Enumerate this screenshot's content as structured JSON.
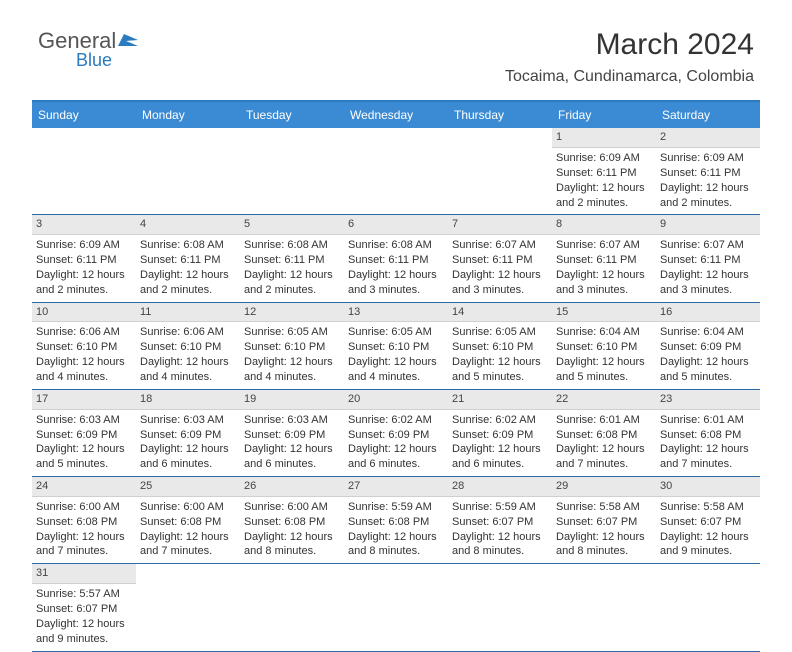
{
  "logo": {
    "part1": "General",
    "part2": "Blue"
  },
  "title": "March 2024",
  "location": "Tocaima, Cundinamarca, Colombia",
  "colors": {
    "header_bg": "#3b8bd4",
    "border": "#2b6aa8",
    "daynum_bg": "#e9e9e9",
    "text": "#333333",
    "logo_blue": "#2b7bbf"
  },
  "day_headers": [
    "Sunday",
    "Monday",
    "Tuesday",
    "Wednesday",
    "Thursday",
    "Friday",
    "Saturday"
  ],
  "weeks": [
    [
      {
        "n": "",
        "sr": "",
        "ss": "",
        "dl": ""
      },
      {
        "n": "",
        "sr": "",
        "ss": "",
        "dl": ""
      },
      {
        "n": "",
        "sr": "",
        "ss": "",
        "dl": ""
      },
      {
        "n": "",
        "sr": "",
        "ss": "",
        "dl": ""
      },
      {
        "n": "",
        "sr": "",
        "ss": "",
        "dl": ""
      },
      {
        "n": "1",
        "sr": "Sunrise: 6:09 AM",
        "ss": "Sunset: 6:11 PM",
        "dl": "Daylight: 12 hours and 2 minutes."
      },
      {
        "n": "2",
        "sr": "Sunrise: 6:09 AM",
        "ss": "Sunset: 6:11 PM",
        "dl": "Daylight: 12 hours and 2 minutes."
      }
    ],
    [
      {
        "n": "3",
        "sr": "Sunrise: 6:09 AM",
        "ss": "Sunset: 6:11 PM",
        "dl": "Daylight: 12 hours and 2 minutes."
      },
      {
        "n": "4",
        "sr": "Sunrise: 6:08 AM",
        "ss": "Sunset: 6:11 PM",
        "dl": "Daylight: 12 hours and 2 minutes."
      },
      {
        "n": "5",
        "sr": "Sunrise: 6:08 AM",
        "ss": "Sunset: 6:11 PM",
        "dl": "Daylight: 12 hours and 2 minutes."
      },
      {
        "n": "6",
        "sr": "Sunrise: 6:08 AM",
        "ss": "Sunset: 6:11 PM",
        "dl": "Daylight: 12 hours and 3 minutes."
      },
      {
        "n": "7",
        "sr": "Sunrise: 6:07 AM",
        "ss": "Sunset: 6:11 PM",
        "dl": "Daylight: 12 hours and 3 minutes."
      },
      {
        "n": "8",
        "sr": "Sunrise: 6:07 AM",
        "ss": "Sunset: 6:11 PM",
        "dl": "Daylight: 12 hours and 3 minutes."
      },
      {
        "n": "9",
        "sr": "Sunrise: 6:07 AM",
        "ss": "Sunset: 6:11 PM",
        "dl": "Daylight: 12 hours and 3 minutes."
      }
    ],
    [
      {
        "n": "10",
        "sr": "Sunrise: 6:06 AM",
        "ss": "Sunset: 6:10 PM",
        "dl": "Daylight: 12 hours and 4 minutes."
      },
      {
        "n": "11",
        "sr": "Sunrise: 6:06 AM",
        "ss": "Sunset: 6:10 PM",
        "dl": "Daylight: 12 hours and 4 minutes."
      },
      {
        "n": "12",
        "sr": "Sunrise: 6:05 AM",
        "ss": "Sunset: 6:10 PM",
        "dl": "Daylight: 12 hours and 4 minutes."
      },
      {
        "n": "13",
        "sr": "Sunrise: 6:05 AM",
        "ss": "Sunset: 6:10 PM",
        "dl": "Daylight: 12 hours and 4 minutes."
      },
      {
        "n": "14",
        "sr": "Sunrise: 6:05 AM",
        "ss": "Sunset: 6:10 PM",
        "dl": "Daylight: 12 hours and 5 minutes."
      },
      {
        "n": "15",
        "sr": "Sunrise: 6:04 AM",
        "ss": "Sunset: 6:10 PM",
        "dl": "Daylight: 12 hours and 5 minutes."
      },
      {
        "n": "16",
        "sr": "Sunrise: 6:04 AM",
        "ss": "Sunset: 6:09 PM",
        "dl": "Daylight: 12 hours and 5 minutes."
      }
    ],
    [
      {
        "n": "17",
        "sr": "Sunrise: 6:03 AM",
        "ss": "Sunset: 6:09 PM",
        "dl": "Daylight: 12 hours and 5 minutes."
      },
      {
        "n": "18",
        "sr": "Sunrise: 6:03 AM",
        "ss": "Sunset: 6:09 PM",
        "dl": "Daylight: 12 hours and 6 minutes."
      },
      {
        "n": "19",
        "sr": "Sunrise: 6:03 AM",
        "ss": "Sunset: 6:09 PM",
        "dl": "Daylight: 12 hours and 6 minutes."
      },
      {
        "n": "20",
        "sr": "Sunrise: 6:02 AM",
        "ss": "Sunset: 6:09 PM",
        "dl": "Daylight: 12 hours and 6 minutes."
      },
      {
        "n": "21",
        "sr": "Sunrise: 6:02 AM",
        "ss": "Sunset: 6:09 PM",
        "dl": "Daylight: 12 hours and 6 minutes."
      },
      {
        "n": "22",
        "sr": "Sunrise: 6:01 AM",
        "ss": "Sunset: 6:08 PM",
        "dl": "Daylight: 12 hours and 7 minutes."
      },
      {
        "n": "23",
        "sr": "Sunrise: 6:01 AM",
        "ss": "Sunset: 6:08 PM",
        "dl": "Daylight: 12 hours and 7 minutes."
      }
    ],
    [
      {
        "n": "24",
        "sr": "Sunrise: 6:00 AM",
        "ss": "Sunset: 6:08 PM",
        "dl": "Daylight: 12 hours and 7 minutes."
      },
      {
        "n": "25",
        "sr": "Sunrise: 6:00 AM",
        "ss": "Sunset: 6:08 PM",
        "dl": "Daylight: 12 hours and 7 minutes."
      },
      {
        "n": "26",
        "sr": "Sunrise: 6:00 AM",
        "ss": "Sunset: 6:08 PM",
        "dl": "Daylight: 12 hours and 8 minutes."
      },
      {
        "n": "27",
        "sr": "Sunrise: 5:59 AM",
        "ss": "Sunset: 6:08 PM",
        "dl": "Daylight: 12 hours and 8 minutes."
      },
      {
        "n": "28",
        "sr": "Sunrise: 5:59 AM",
        "ss": "Sunset: 6:07 PM",
        "dl": "Daylight: 12 hours and 8 minutes."
      },
      {
        "n": "29",
        "sr": "Sunrise: 5:58 AM",
        "ss": "Sunset: 6:07 PM",
        "dl": "Daylight: 12 hours and 8 minutes."
      },
      {
        "n": "30",
        "sr": "Sunrise: 5:58 AM",
        "ss": "Sunset: 6:07 PM",
        "dl": "Daylight: 12 hours and 9 minutes."
      }
    ],
    [
      {
        "n": "31",
        "sr": "Sunrise: 5:57 AM",
        "ss": "Sunset: 6:07 PM",
        "dl": "Daylight: 12 hours and 9 minutes."
      },
      {
        "n": "",
        "sr": "",
        "ss": "",
        "dl": ""
      },
      {
        "n": "",
        "sr": "",
        "ss": "",
        "dl": ""
      },
      {
        "n": "",
        "sr": "",
        "ss": "",
        "dl": ""
      },
      {
        "n": "",
        "sr": "",
        "ss": "",
        "dl": ""
      },
      {
        "n": "",
        "sr": "",
        "ss": "",
        "dl": ""
      },
      {
        "n": "",
        "sr": "",
        "ss": "",
        "dl": ""
      }
    ]
  ]
}
